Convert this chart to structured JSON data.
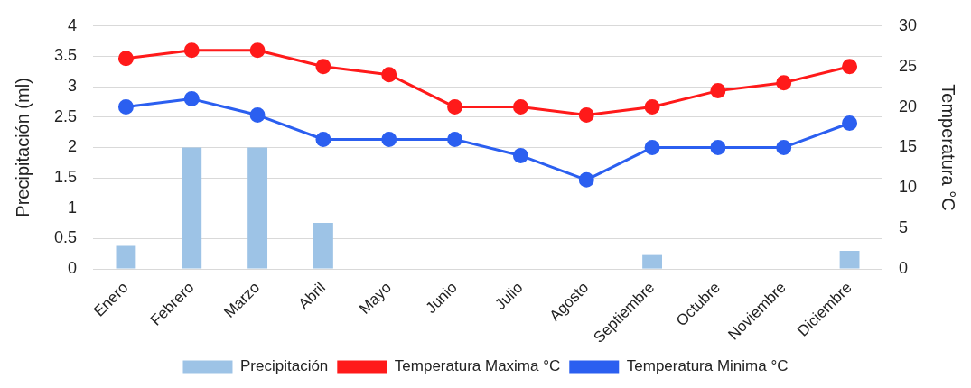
{
  "chart_data": {
    "type": "bar",
    "categories": [
      "Enero",
      "Febrero",
      "Marzo",
      "Abril",
      "Mayo",
      "Junio",
      "Julio",
      "Agosto",
      "Septiembre",
      "Octubre",
      "Noviembre",
      "Diciembre"
    ],
    "ylabel": "Precipitación (ml)",
    "y2label": "Temperatura °C",
    "ylim": [
      0,
      4
    ],
    "yticks": [
      0,
      0.5,
      1,
      1.5,
      2,
      2.5,
      3,
      3.5,
      4
    ],
    "y2lim": [
      0,
      30
    ],
    "y2ticks": [
      0,
      5,
      10,
      15,
      20,
      25,
      30
    ],
    "grid": "y",
    "legend": "bottom",
    "marker": "circle",
    "series": [
      {
        "name": "Precipitación",
        "color": "#9dc3e6",
        "values": [
          0.38,
          2,
          2,
          0.76,
          0,
          0,
          0,
          0,
          0.23,
          0,
          0,
          0.3
        ]
      },
      {
        "name": "Temperatura Maxima °C",
        "type": "line",
        "axis": "y2",
        "color": "#ff1a1a",
        "values": [
          26,
          27,
          27,
          25,
          24,
          20,
          20,
          19,
          20,
          22,
          23,
          25
        ]
      },
      {
        "name": "Temperatura Minima °C",
        "type": "line",
        "axis": "y2",
        "color": "#2b5ff0",
        "values": [
          20,
          21,
          19,
          16,
          16,
          16,
          14,
          11,
          15,
          15,
          15,
          18
        ]
      }
    ]
  }
}
